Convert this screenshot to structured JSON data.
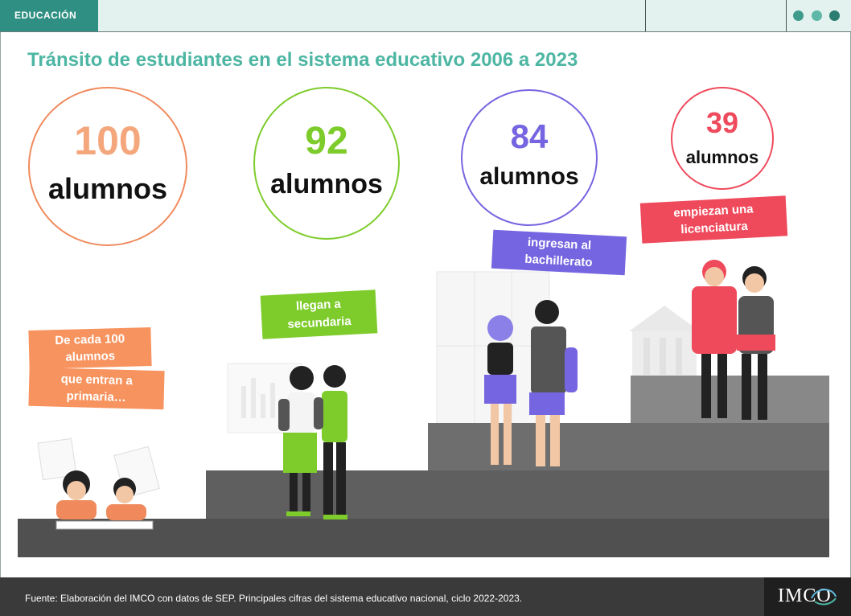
{
  "header": {
    "section_tag": "EDUCACIÓN",
    "accent_color": "#2f8f82",
    "dots_colors": [
      "#3d9b8c",
      "#5fb7a7",
      "#2a7d70"
    ]
  },
  "title": "Tránsito de estudiantes en el sistema educativo 2006 a 2023",
  "stages": [
    {
      "value": "100",
      "unit": "alumnos",
      "caption": [
        "De cada 100",
        "alumnos",
        "que entran a",
        "primaria…"
      ],
      "color": "#f08a5d"
    },
    {
      "value": "92",
      "unit": "alumnos",
      "caption": [
        "llegan a",
        "secundaria"
      ],
      "color": "#7dcc2b"
    },
    {
      "value": "84",
      "unit": "alumnos",
      "caption": [
        "ingresan al",
        "bachillerato"
      ],
      "color": "#7565e0"
    },
    {
      "value": "39",
      "unit": "alumnos",
      "caption": [
        "empiezan una",
        "licenciatura"
      ],
      "color": "#ef4a5c"
    }
  ],
  "footer": {
    "source": "Fuente: Elaboración del IMCO con datos de SEP. Principales cifras del sistema educativo nacional, ciclo 2022-2023.",
    "logo": "IMCO"
  }
}
